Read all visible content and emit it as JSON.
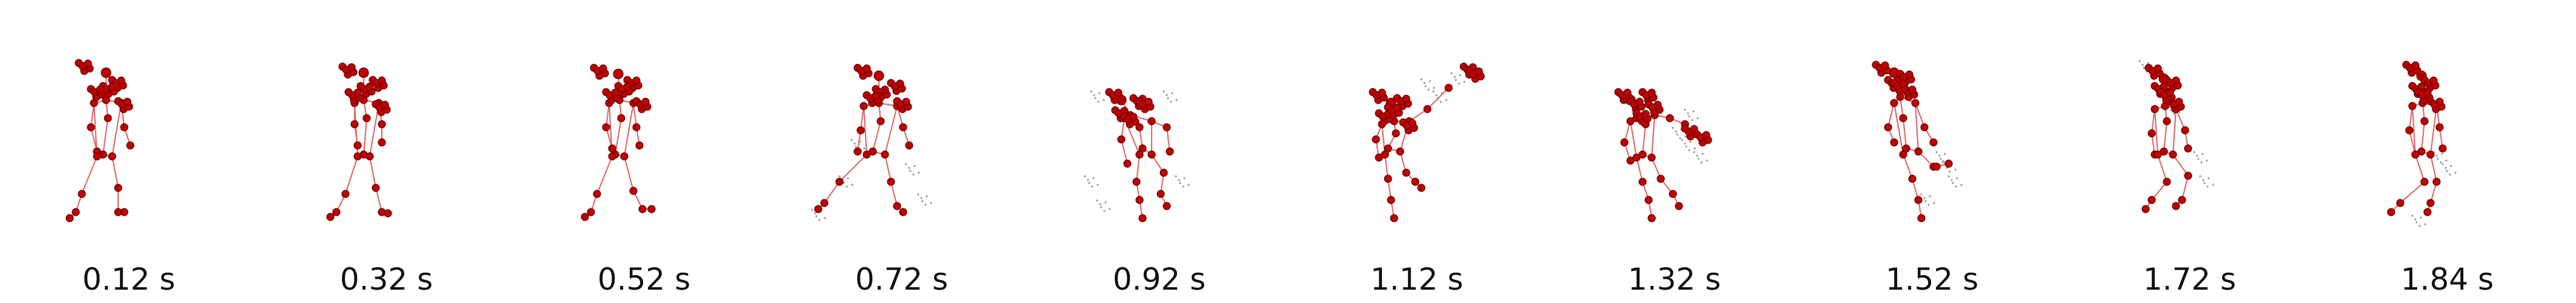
{
  "figure": {
    "frames": [
      {
        "label": "0.12 s"
      },
      {
        "label": "0.32 s"
      },
      {
        "label": "0.52 s"
      },
      {
        "label": "0.72 s"
      },
      {
        "label": "0.92 s"
      },
      {
        "label": "1.12 s"
      },
      {
        "label": "1.32 s"
      },
      {
        "label": "1.52 s"
      },
      {
        "label": "1.72 s"
      },
      {
        "label": "1.84 s"
      }
    ],
    "colors": {
      "joint": "#c00000",
      "joint_outline": "#5a0000",
      "bone": "#e06a6a",
      "trail": "#444444",
      "text": "#111111"
    }
  }
}
